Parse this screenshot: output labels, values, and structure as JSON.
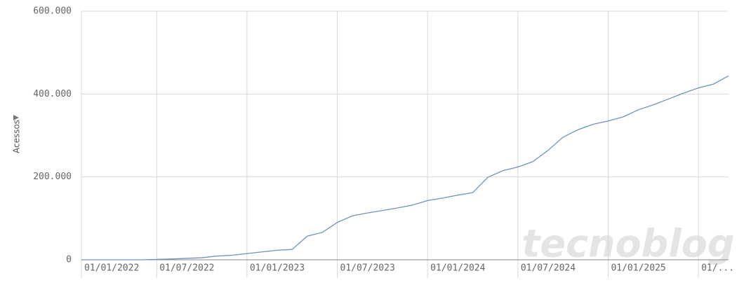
{
  "chart_data": {
    "type": "line",
    "y_label": "Acessos",
    "watermark": "tecnoblog",
    "x": [
      "01/02/2022",
      "01/03/2022",
      "01/04/2022",
      "01/05/2022",
      "01/06/2022",
      "01/07/2022",
      "01/08/2022",
      "01/09/2022",
      "01/10/2022",
      "01/11/2022",
      "01/12/2022",
      "01/01/2023",
      "01/02/2023",
      "01/03/2023",
      "01/04/2023",
      "01/05/2023",
      "01/06/2023",
      "01/07/2023",
      "01/08/2023",
      "01/09/2023",
      "01/10/2023",
      "01/11/2023",
      "01/12/2023",
      "01/01/2024",
      "01/02/2024",
      "01/03/2024",
      "01/04/2024",
      "01/05/2024",
      "01/06/2024",
      "01/07/2024",
      "01/08/2024",
      "01/09/2024",
      "01/10/2024",
      "01/11/2024",
      "01/12/2024",
      "01/01/2025",
      "01/02/2025",
      "01/03/2025",
      "01/04/2025",
      "01/05/2025",
      "01/06/2025",
      "01/07/2025",
      "01/08/2025",
      "01/09/2025"
    ],
    "series": [
      {
        "color": "#6f93ba",
        "values": [
          0,
          0,
          0,
          0,
          0,
          1000,
          2000,
          3500,
          5000,
          9000,
          11000,
          15000,
          19000,
          23000,
          25000,
          57000,
          66000,
          90000,
          106000,
          113000,
          119000,
          125000,
          132000,
          143000,
          149000,
          156000,
          162000,
          199000,
          215000,
          224000,
          237000,
          264000,
          296000,
          314000,
          327000,
          335000,
          345000,
          362000,
          374000,
          388000,
          402000,
          415000,
          424000,
          444000
        ]
      }
    ],
    "ylim": [
      0,
      600000
    ],
    "yticks": [
      0,
      {
        "value": 200000,
        "label": "200.000"
      },
      {
        "value": 400000,
        "label": "400.000"
      },
      {
        "value": 600000,
        "label": "600.000"
      }
    ],
    "xticks": [
      "01/01/2022",
      "01/07/2022",
      "01/01/2023",
      "01/07/2023",
      "01/01/2024",
      "01/07/2024",
      "01/01/2025",
      {
        "value": "01/07/2025",
        "label": "01/..."
      }
    ],
    "grid": true
  }
}
